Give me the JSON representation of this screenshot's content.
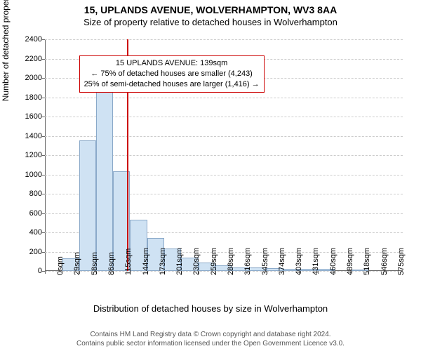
{
  "title_main": "15, UPLANDS AVENUE, WOLVERHAMPTON, WV3 8AA",
  "title_sub": "Size of property relative to detached houses in Wolverhampton",
  "y_axis_title": "Number of detached properties",
  "x_axis_title": "Distribution of detached houses by size in Wolverhampton",
  "chart": {
    "type": "histogram",
    "ylim": [
      0,
      2400
    ],
    "ytick_step": 200,
    "x_categories": [
      "0sqm",
      "29sqm",
      "58sqm",
      "86sqm",
      "115sqm",
      "144sqm",
      "173sqm",
      "201sqm",
      "230sqm",
      "259sqm",
      "288sqm",
      "316sqm",
      "345sqm",
      "374sqm",
      "403sqm",
      "431sqm",
      "460sqm",
      "489sqm",
      "518sqm",
      "546sqm",
      "575sqm"
    ],
    "values": [
      0,
      130,
      1350,
      1880,
      1030,
      530,
      340,
      230,
      140,
      90,
      60,
      40,
      40,
      30,
      25,
      20,
      20,
      0,
      15,
      0,
      0
    ],
    "bar_fill": "#cfe2f3",
    "bar_border": "#8aa9c9",
    "grid_color": "#cccccc",
    "background_color": "#ffffff",
    "axis_color": "#666666",
    "reference_line": {
      "position_index": 4.8,
      "color": "#cc0000"
    },
    "annotation": {
      "lines": [
        "15 UPLANDS AVENUE: 139sqm",
        "← 75% of detached houses are smaller (4,243)",
        "25% of semi-detached houses are larger (1,416) →"
      ],
      "border_color": "#cc0000",
      "x_index": 2.0,
      "y_value": 2230
    }
  },
  "footer_line1": "Contains HM Land Registry data © Crown copyright and database right 2024.",
  "footer_line2": "Contains public sector information licensed under the Open Government Licence v3.0."
}
